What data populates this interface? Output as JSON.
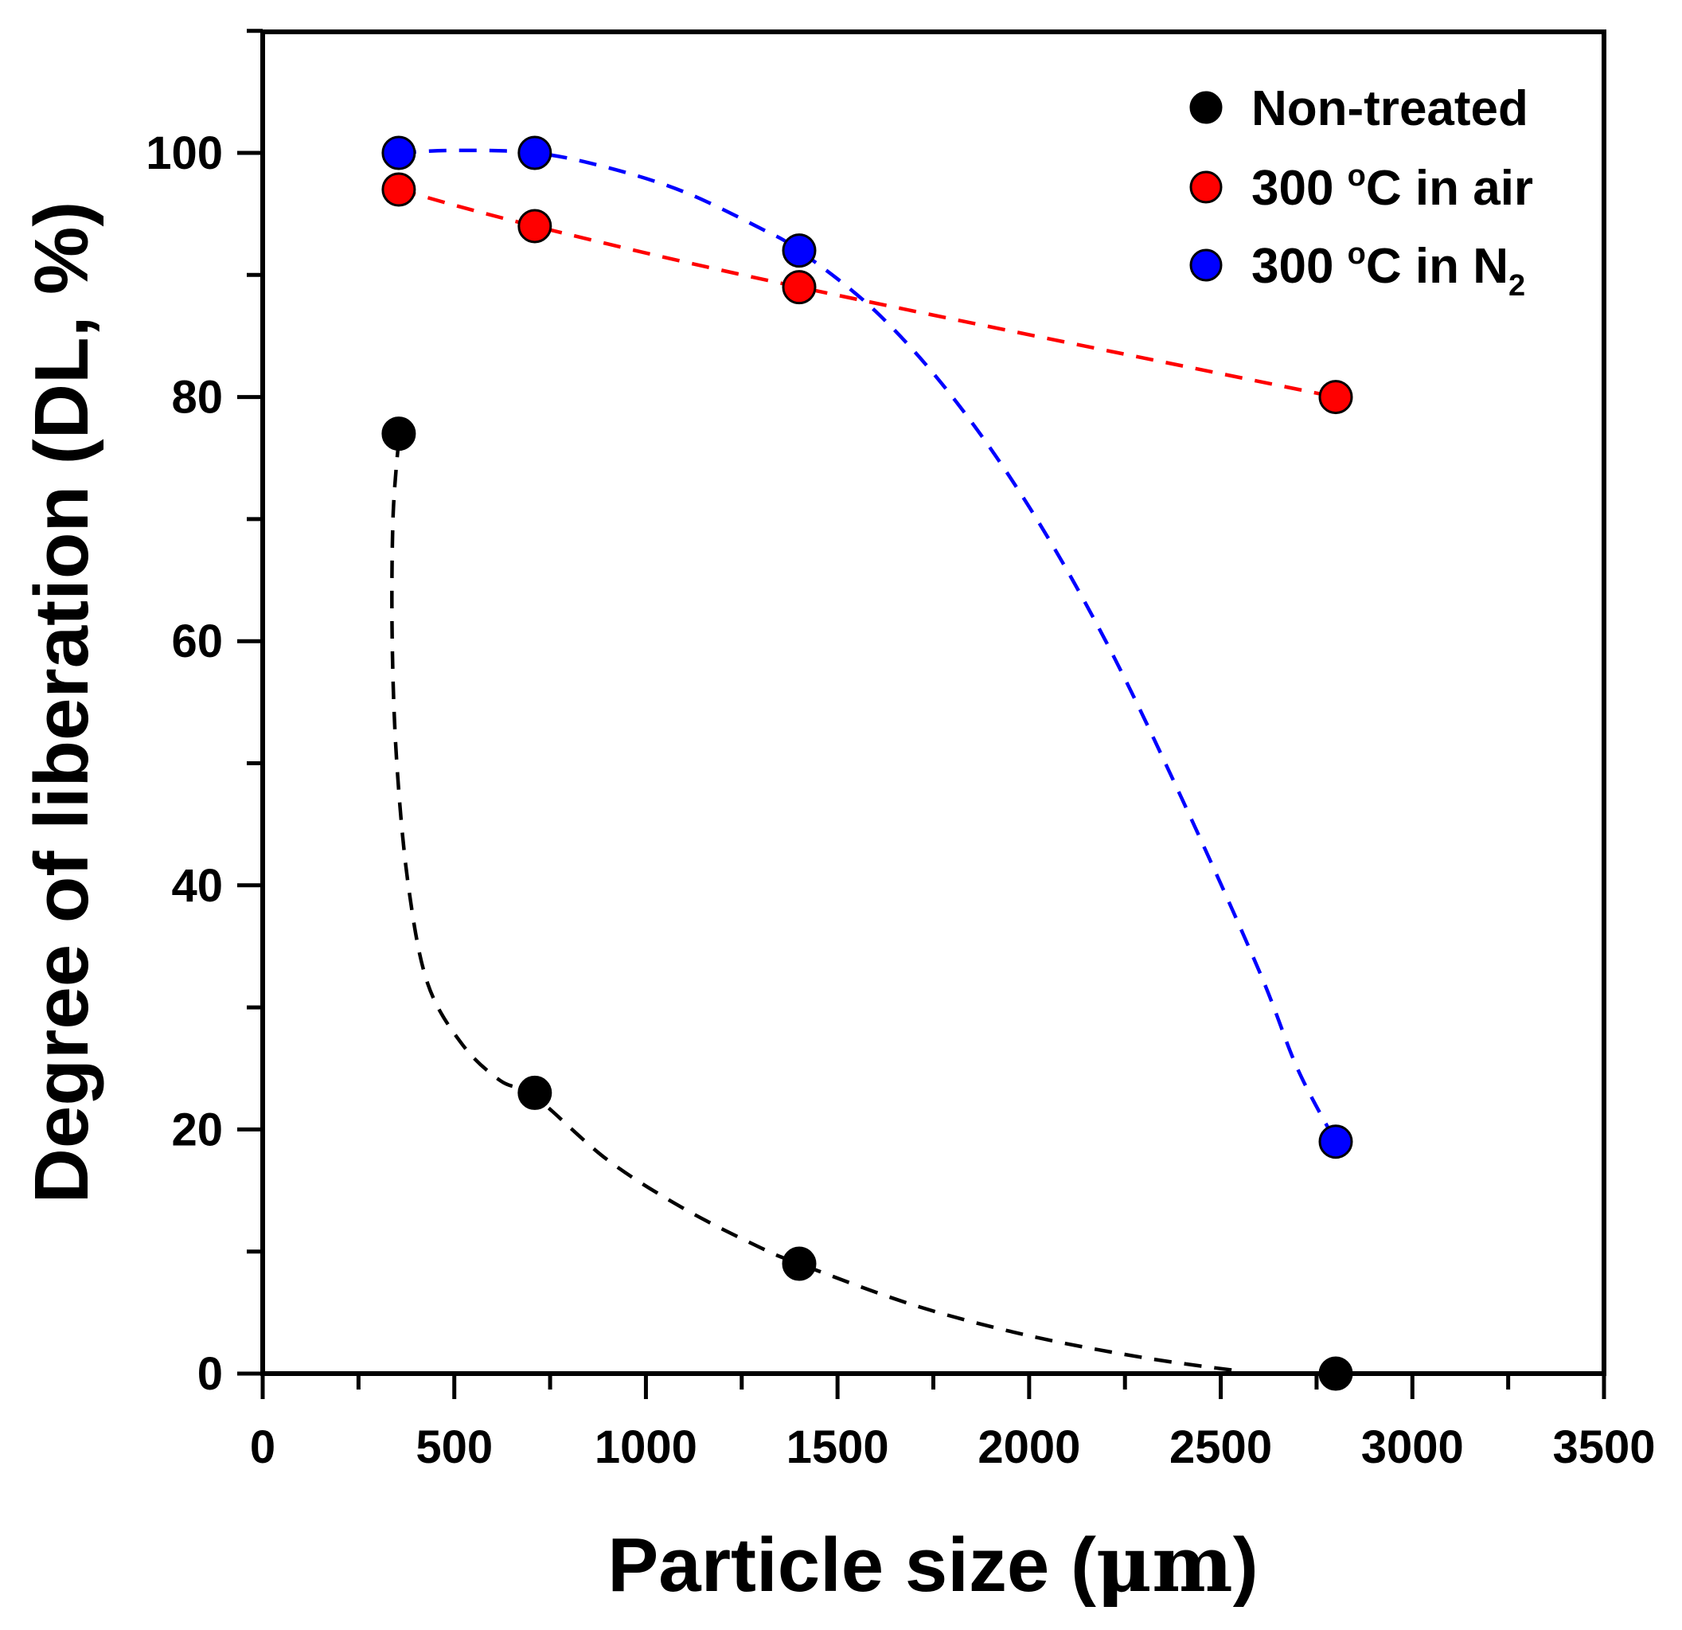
{
  "chart_data": {
    "type": "scatter",
    "xlabel_main": "Particle size (",
    "xlabel_unit": "μm",
    "xlabel_close": ")",
    "ylabel": "Degree of liberation (DL, %)",
    "xlim": [
      0,
      3500
    ],
    "ylim": [
      0,
      110
    ],
    "x_ticks": [
      0,
      500,
      1000,
      1500,
      2000,
      2500,
      3000,
      3500
    ],
    "y_ticks": [
      0,
      20,
      40,
      60,
      80,
      100
    ],
    "legend_position": "top-right",
    "series": [
      {
        "name": "Non-treated",
        "color": "#000000",
        "x": [
          355,
          710,
          1400,
          2800
        ],
        "y": [
          77,
          23,
          9,
          0
        ],
        "fit_curve": [
          [
            355,
            76.5
          ],
          [
            340,
            70
          ],
          [
            338,
            60
          ],
          [
            350,
            50
          ],
          [
            380,
            40
          ],
          [
            430,
            32
          ],
          [
            520,
            27
          ],
          [
            620,
            24
          ],
          [
            710,
            22.7
          ],
          [
            900,
            17.5
          ],
          [
            1100,
            13.5
          ],
          [
            1300,
            10.3
          ],
          [
            1400,
            9
          ],
          [
            1700,
            5.6
          ],
          [
            2000,
            3.1
          ],
          [
            2300,
            1.3
          ],
          [
            2550,
            0.2
          ]
        ]
      },
      {
        "name": "300 °C in air",
        "name_base": "300 ",
        "name_sup": "o",
        "name_rest": "C in air",
        "color": "#ff0000",
        "x": [
          355,
          710,
          1400,
          2800
        ],
        "y": [
          97,
          94,
          89,
          80
        ],
        "fit_curve": [
          [
            355,
            97
          ],
          [
            710,
            94
          ],
          [
            1400,
            89
          ],
          [
            2800,
            80
          ]
        ]
      },
      {
        "name": "300 °C in N2",
        "name_base": "300 ",
        "name_sup": "o",
        "name_rest": "C in N",
        "name_sub": "2",
        "color": "#0000ff",
        "x": [
          355,
          710,
          1400,
          2800
        ],
        "y": [
          100,
          100,
          92,
          19
        ],
        "fit_curve": [
          [
            355,
            100
          ],
          [
            500,
            100.2
          ],
          [
            710,
            100
          ],
          [
            900,
            98.8
          ],
          [
            1100,
            96.8
          ],
          [
            1300,
            93.8
          ],
          [
            1400,
            92
          ],
          [
            1600,
            87
          ],
          [
            1800,
            80
          ],
          [
            2000,
            71
          ],
          [
            2200,
            60
          ],
          [
            2400,
            47
          ],
          [
            2600,
            33
          ],
          [
            2700,
            25
          ],
          [
            2800,
            19
          ]
        ]
      }
    ]
  }
}
